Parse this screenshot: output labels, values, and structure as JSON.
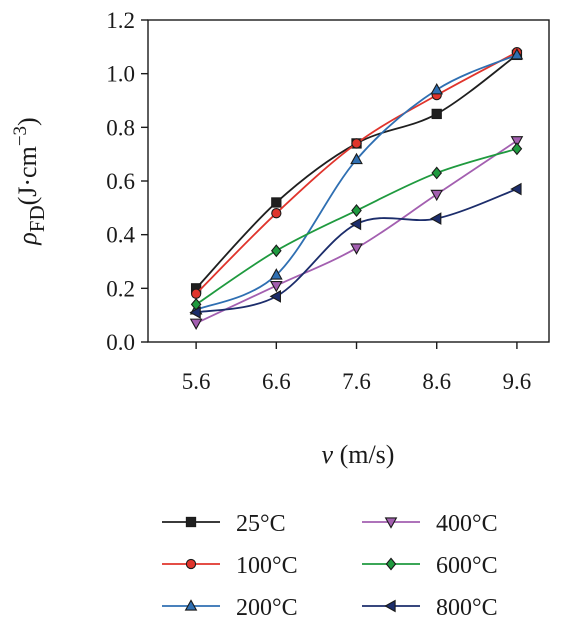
{
  "chart_data": {
    "type": "line",
    "x": [
      5.6,
      6.6,
      7.6,
      8.6,
      9.6
    ],
    "x_tick_labels": [
      "5.6",
      "6.6",
      "7.6",
      "8.6",
      "9.6"
    ],
    "y_tick_labels": [
      "0.0",
      "0.2",
      "0.4",
      "0.6",
      "0.8",
      "1.0",
      "1.2"
    ],
    "xlim": [
      5.0,
      10.0
    ],
    "ylim": [
      0.0,
      1.2
    ],
    "xlabel": "v (m/s)",
    "ylabel": "ρFD(J·cm−3)",
    "ylabel_parts": {
      "symbol": "ρ",
      "subscript": "FD",
      "unit": "(J·cm",
      "exponent": "−3",
      "close": ")"
    },
    "xlabel_parts": {
      "symbol": "v",
      "unit": " (m/s)"
    },
    "grid": false,
    "smooth_lines": true,
    "legend_position": "bottom",
    "series": [
      {
        "name": "25°C",
        "color": "#1f1f1f",
        "marker": "square",
        "values": [
          0.2,
          0.52,
          0.74,
          0.85,
          1.07
        ]
      },
      {
        "name": "100°C",
        "color": "#e0342c",
        "marker": "circle",
        "values": [
          0.18,
          0.48,
          0.74,
          0.92,
          1.08
        ]
      },
      {
        "name": "200°C",
        "color": "#2f6fb2",
        "marker": "triangle-up",
        "values": [
          0.12,
          0.25,
          0.68,
          0.94,
          1.07
        ]
      },
      {
        "name": "400°C",
        "color": "#a35fb0",
        "marker": "triangle-down",
        "values": [
          0.07,
          0.21,
          0.35,
          0.55,
          0.75
        ]
      },
      {
        "name": "600°C",
        "color": "#1f9a3f",
        "marker": "diamond",
        "values": [
          0.14,
          0.34,
          0.49,
          0.63,
          0.72
        ]
      },
      {
        "name": "800°C",
        "color": "#1c2d6b",
        "marker": "triangle-left",
        "values": [
          0.11,
          0.17,
          0.44,
          0.46,
          0.57
        ]
      }
    ]
  }
}
